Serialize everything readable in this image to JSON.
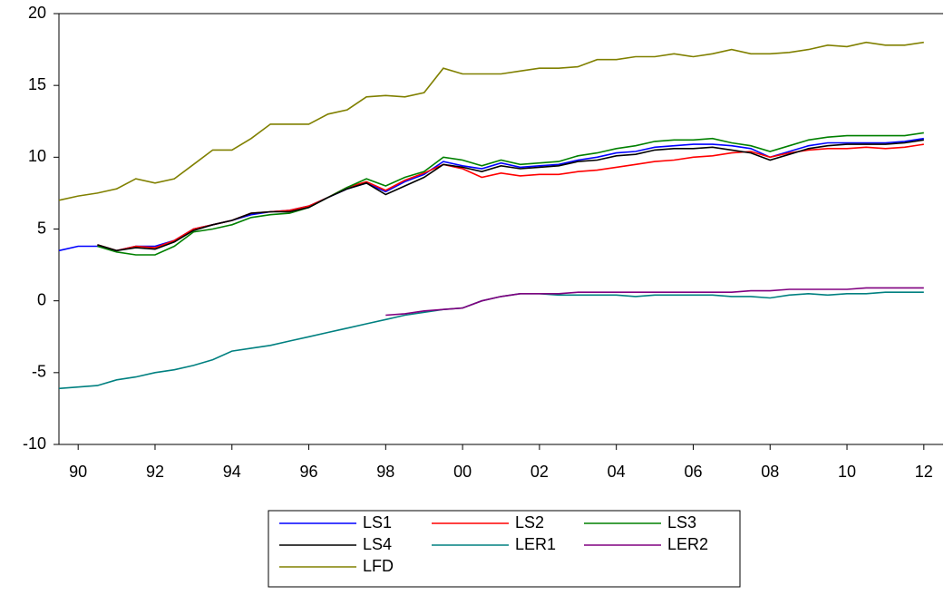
{
  "chart_data": {
    "type": "line",
    "x": [
      1990,
      1990.5,
      1991,
      1991.5,
      1992,
      1992.5,
      1993,
      1993.5,
      1994,
      1994.5,
      1995,
      1995.5,
      1996,
      1996.5,
      1997,
      1997.5,
      1998,
      1998.5,
      1999,
      1999.5,
      2000,
      2000.5,
      2001,
      2001.5,
      2002,
      2002.5,
      2003,
      2003.5,
      2004,
      2004.5,
      2005,
      2005.5,
      2006,
      2006.5,
      2007,
      2007.5,
      2008,
      2008.5,
      2009,
      2009.5,
      2010,
      2010.5,
      2011,
      2011.5,
      2012,
      2012.5
    ],
    "xlim": [
      1990,
      2013
    ],
    "xticks": [
      {
        "value": 1990.5,
        "label": "90"
      },
      {
        "value": 1992.5,
        "label": "92"
      },
      {
        "value": 1994.5,
        "label": "94"
      },
      {
        "value": 1996.5,
        "label": "96"
      },
      {
        "value": 1998.5,
        "label": "98"
      },
      {
        "value": 2000.5,
        "label": "00"
      },
      {
        "value": 2002.5,
        "label": "02"
      },
      {
        "value": 2004.5,
        "label": "04"
      },
      {
        "value": 2006.5,
        "label": "06"
      },
      {
        "value": 2008.5,
        "label": "08"
      },
      {
        "value": 2010.5,
        "label": "10"
      },
      {
        "value": 2012.5,
        "label": "12"
      }
    ],
    "ylim": [
      -10,
      20
    ],
    "yticks": [
      -10,
      -5,
      0,
      5,
      10,
      15,
      20
    ],
    "series": [
      {
        "name": "LS1",
        "color": "#0000ff",
        "values": [
          3.5,
          3.8,
          3.8,
          3.5,
          3.8,
          3.8,
          4.2,
          5.0,
          5.3,
          5.6,
          6.0,
          6.2,
          6.3,
          6.6,
          7.2,
          7.8,
          8.2,
          7.6,
          8.3,
          8.8,
          9.7,
          9.4,
          9.2,
          9.6,
          9.3,
          9.4,
          9.5,
          9.8,
          10.0,
          10.3,
          10.4,
          10.7,
          10.8,
          10.9,
          10.9,
          10.8,
          10.6,
          10.0,
          10.4,
          10.8,
          11.0,
          11.0,
          11.0,
          11.0,
          11.1,
          11.3
        ]
      },
      {
        "name": "LS2",
        "color": "#ff0000",
        "values": [
          null,
          null,
          3.9,
          3.5,
          3.8,
          3.7,
          4.2,
          5.0,
          5.3,
          5.6,
          6.1,
          6.2,
          6.3,
          6.6,
          7.2,
          7.9,
          8.3,
          7.7,
          8.4,
          8.9,
          9.5,
          9.2,
          8.6,
          8.9,
          8.7,
          8.8,
          8.8,
          9.0,
          9.1,
          9.3,
          9.5,
          9.7,
          9.8,
          10.0,
          10.1,
          10.3,
          10.4,
          10.0,
          10.3,
          10.5,
          10.6,
          10.6,
          10.7,
          10.6,
          10.7,
          10.9
        ]
      },
      {
        "name": "LS3",
        "color": "#008000",
        "values": [
          null,
          null,
          3.8,
          3.4,
          3.2,
          3.2,
          3.8,
          4.8,
          5.0,
          5.3,
          5.8,
          6.0,
          6.1,
          6.5,
          7.2,
          7.9,
          8.5,
          8.0,
          8.6,
          9.0,
          10.0,
          9.8,
          9.4,
          9.8,
          9.5,
          9.6,
          9.7,
          10.1,
          10.3,
          10.6,
          10.8,
          11.1,
          11.2,
          11.2,
          11.3,
          11.0,
          10.8,
          10.4,
          10.8,
          11.2,
          11.4,
          11.5,
          11.5,
          11.5,
          11.5,
          11.7
        ]
      },
      {
        "name": "LS4",
        "color": "#000000",
        "values": [
          null,
          null,
          3.9,
          3.5,
          3.7,
          3.6,
          4.1,
          4.9,
          5.3,
          5.6,
          6.1,
          6.2,
          6.2,
          6.5,
          7.2,
          7.8,
          8.2,
          7.4,
          8.0,
          8.6,
          9.5,
          9.3,
          9.0,
          9.4,
          9.2,
          9.3,
          9.4,
          9.7,
          9.8,
          10.1,
          10.2,
          10.5,
          10.6,
          10.6,
          10.7,
          10.5,
          10.3,
          9.8,
          10.2,
          10.6,
          10.8,
          10.9,
          10.9,
          10.9,
          11.0,
          11.2
        ]
      },
      {
        "name": "LER1",
        "color": "#008080",
        "values": [
          -6.1,
          -6.0,
          -5.9,
          -5.5,
          -5.3,
          -5.0,
          -4.8,
          -4.5,
          -4.1,
          -3.5,
          -3.3,
          -3.1,
          -2.8,
          -2.5,
          -2.2,
          -1.9,
          -1.6,
          -1.3,
          -1.0,
          -0.8,
          -0.6,
          -0.5,
          0.0,
          0.3,
          0.5,
          0.5,
          0.4,
          0.4,
          0.4,
          0.4,
          0.3,
          0.4,
          0.4,
          0.4,
          0.4,
          0.3,
          0.3,
          0.2,
          0.4,
          0.5,
          0.4,
          0.5,
          0.5,
          0.6,
          0.6,
          0.6
        ]
      },
      {
        "name": "LER2",
        "color": "#800080",
        "values": [
          null,
          null,
          null,
          null,
          null,
          null,
          null,
          null,
          null,
          null,
          null,
          null,
          null,
          null,
          null,
          null,
          null,
          -1.0,
          -0.9,
          -0.7,
          -0.6,
          -0.5,
          0.0,
          0.3,
          0.5,
          0.5,
          0.5,
          0.6,
          0.6,
          0.6,
          0.6,
          0.6,
          0.6,
          0.6,
          0.6,
          0.6,
          0.7,
          0.7,
          0.8,
          0.8,
          0.8,
          0.8,
          0.9,
          0.9,
          0.9,
          0.9
        ]
      },
      {
        "name": "LFD",
        "color": "#808000",
        "values": [
          7.0,
          7.3,
          7.5,
          7.8,
          8.5,
          8.2,
          8.5,
          9.5,
          10.5,
          10.5,
          11.3,
          12.3,
          12.3,
          12.3,
          13.0,
          13.3,
          14.2,
          14.3,
          14.2,
          14.5,
          16.2,
          15.8,
          15.8,
          15.8,
          16.0,
          16.2,
          16.2,
          16.3,
          16.8,
          16.8,
          17.0,
          17.0,
          17.2,
          17.0,
          17.2,
          17.5,
          17.2,
          17.2,
          17.3,
          17.5,
          17.8,
          17.7,
          18.0,
          17.8,
          17.8,
          18.0
        ]
      }
    ]
  }
}
